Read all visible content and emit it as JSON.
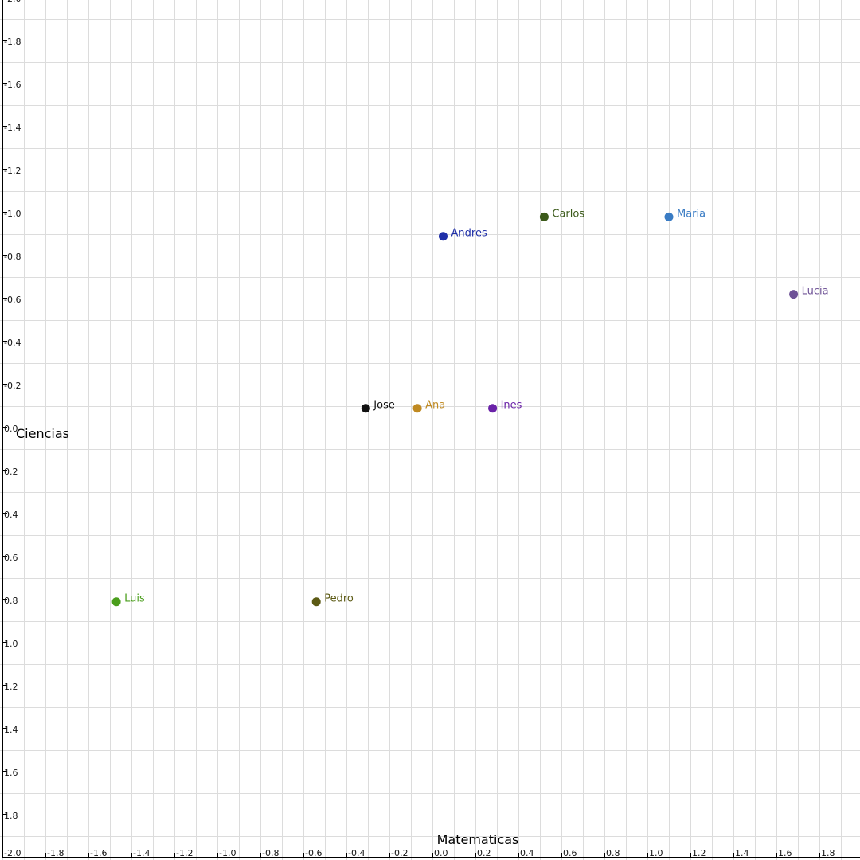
{
  "chart_data": {
    "type": "scatter",
    "title": "",
    "xlabel": "Matematicas",
    "ylabel": "Ciencias",
    "xlim": [
      -2.0,
      2.0
    ],
    "ylim": [
      -2.0,
      2.0
    ],
    "y_tick_labels_inverted": true,
    "grid": true,
    "xticks": [
      -2.0,
      -1.8,
      -1.6,
      -1.4,
      -1.2,
      -1.0,
      -0.8,
      -0.6,
      -0.4,
      -0.2,
      0.0,
      0.2,
      0.4,
      0.6,
      0.8,
      1.0,
      1.2,
      1.4,
      1.6,
      1.8
    ],
    "yticks": [
      1.8,
      1.6,
      1.4,
      1.2,
      1.0,
      0.8,
      0.6,
      0.4,
      0.2,
      0.0,
      -0.2,
      -0.4,
      -0.6,
      -0.8,
      -1.0,
      -1.2,
      -1.4,
      -1.6,
      -1.8,
      -2.0
    ],
    "points": [
      {
        "label": "Andres",
        "x": 0.05,
        "y": 0.89,
        "color": "#1f2fa8"
      },
      {
        "label": "Carlos",
        "x": 0.52,
        "y": 0.98,
        "color": "#3b5a1a"
      },
      {
        "label": "Maria",
        "x": 1.1,
        "y": 0.98,
        "color": "#3a7cc4"
      },
      {
        "label": "Lucia",
        "x": 1.68,
        "y": 0.62,
        "color": "#6e5296"
      },
      {
        "label": "Jose",
        "x": -0.31,
        "y": 0.09,
        "color": "#111111"
      },
      {
        "label": "Ana",
        "x": -0.07,
        "y": 0.09,
        "color": "#c08a22"
      },
      {
        "label": "Ines",
        "x": 0.28,
        "y": 0.09,
        "color": "#6a22a8"
      },
      {
        "label": "Luis",
        "x": -1.47,
        "y": -0.81,
        "color": "#4a9e1c"
      },
      {
        "label": "Pedro",
        "x": -0.54,
        "y": -0.81,
        "color": "#5c5a14"
      }
    ]
  }
}
